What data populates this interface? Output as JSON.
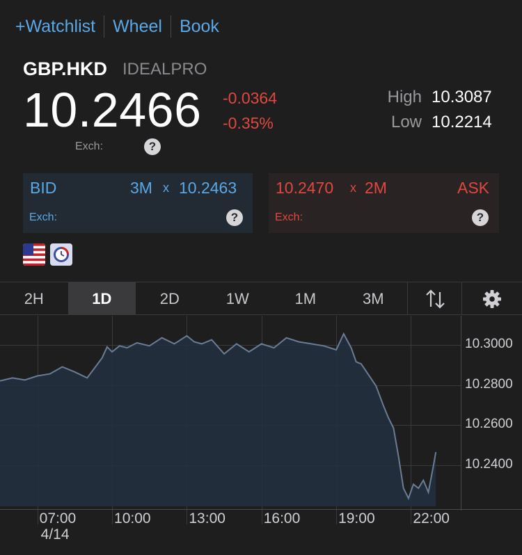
{
  "top_links": [
    "+Watchlist",
    "Wheel",
    "Book"
  ],
  "quote": {
    "symbol": "GBP.HKD",
    "exchange": "IDEALPRO",
    "last": "10.2466",
    "change": "-0.0364",
    "change_pct": "-0.35%",
    "high_label": "High",
    "high": "10.3087",
    "low_label": "Low",
    "low": "10.2214",
    "exch_label": "Exch:"
  },
  "bid": {
    "label": "BID",
    "size": "3M",
    "x": "x",
    "price": "10.2463",
    "exch_label": "Exch:"
  },
  "ask": {
    "label": "ASK",
    "size": "2M",
    "x": "x",
    "price": "10.2470",
    "exch_label": "Exch:"
  },
  "help_glyph": "?",
  "timeframes": [
    "2H",
    "1D",
    "2D",
    "1W",
    "1M",
    "3M"
  ],
  "active_timeframe": "1D",
  "icons": {
    "flag": "us-flag-icon",
    "clock": "clock-icon",
    "sort": "sort-arrows-icon",
    "settings": "gear-icon"
  },
  "colors": {
    "accent": "#5aa8e6",
    "negative": "#e0483f",
    "line": "#6b7d95",
    "fill": "#223041"
  },
  "chart_data": {
    "type": "area",
    "title": "",
    "xlabel": "",
    "ylabel": "",
    "ylim": [
      10.2195,
      10.3145
    ],
    "grid": true,
    "x_ticks": [
      "07:00",
      "10:00",
      "13:00",
      "16:00",
      "19:00",
      "22:00"
    ],
    "x_date_label": "4/14",
    "y_ticks": [
      "10.3000",
      "10.2800",
      "10.2600",
      "10.2400"
    ],
    "y_tick_values": [
      10.3,
      10.28,
      10.26,
      10.24
    ],
    "x_range_hours": [
      5.5,
      24
    ],
    "series": [
      {
        "x": [
          5.5,
          6.0,
          6.5,
          7.0,
          7.5,
          8.0,
          8.5,
          9.0,
          9.3,
          9.6,
          9.8,
          10.0,
          10.3,
          10.6,
          11.0,
          11.5,
          12.0,
          12.5,
          13.0,
          13.3,
          13.6,
          14.0,
          14.5,
          15.0,
          15.5,
          16.0,
          16.5,
          17.0,
          17.5,
          18.0,
          18.5,
          19.0,
          19.3,
          19.6,
          19.8,
          20.0,
          20.3,
          20.6,
          20.9,
          21.1,
          21.3,
          21.5,
          21.7,
          21.9,
          22.1,
          22.3,
          22.5,
          22.7,
          22.9,
          23.0
        ],
        "y": [
          10.282,
          10.2835,
          10.2825,
          10.2845,
          10.2855,
          10.289,
          10.2865,
          10.2835,
          10.2885,
          10.2935,
          10.299,
          10.2965,
          10.2995,
          10.2985,
          10.301,
          10.2995,
          10.3035,
          10.3005,
          10.3045,
          10.3015,
          10.3005,
          10.3025,
          10.2955,
          10.3005,
          10.2965,
          10.3005,
          10.2985,
          10.3035,
          10.3015,
          10.3005,
          10.2995,
          10.2975,
          10.3055,
          10.2985,
          10.2915,
          10.2905,
          10.285,
          10.2795,
          10.2695,
          10.2635,
          10.2585,
          10.2445,
          10.2285,
          10.2235,
          10.2305,
          10.2285,
          10.2325,
          10.2265,
          10.2395,
          10.2465
        ]
      }
    ]
  }
}
